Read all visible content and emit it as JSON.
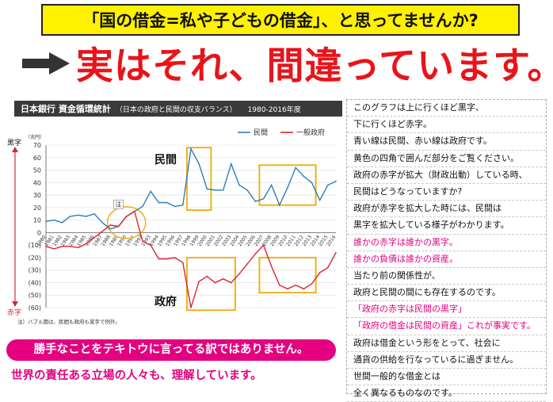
{
  "banner": {
    "text": "「国の借金=私や子どもの借金」、と思ってませんか?"
  },
  "headline": {
    "text": "実はそれ、間違っています。"
  },
  "chart_header": {
    "title": "日本銀行 資金循環統計",
    "subtitle": "（日本の政府と民間の収支バランス）",
    "range": "1980-2016年度"
  },
  "chart_data": {
    "type": "line",
    "unit_label": "（兆円）",
    "ylim": [
      -60,
      70
    ],
    "yticks": [
      70,
      60,
      50,
      40,
      30,
      20,
      10,
      0,
      -10,
      -20,
      -30,
      -40,
      -50,
      -60
    ],
    "ytick_labels": [
      "70",
      "60",
      "50",
      "40",
      "30",
      "20",
      "10",
      "0",
      "(10)",
      "(20)",
      "(30)",
      "(40)",
      "(50)",
      "(60)"
    ],
    "x": [
      "1980",
      "1981",
      "1982",
      "1983",
      "1984",
      "1985",
      "1986",
      "1987",
      "1988",
      "1989",
      "1990",
      "1991",
      "1992",
      "1993",
      "1994",
      "1995",
      "1996",
      "1997",
      "1998",
      "1999",
      "2000",
      "2001",
      "2002",
      "2003",
      "2004",
      "2005",
      "2006",
      "2007",
      "2008",
      "2009",
      "2010",
      "2011",
      "2012",
      "2013",
      "2014",
      "2015",
      "2016"
    ],
    "series": [
      {
        "name": "民間",
        "color": "#2e7dbf",
        "values": [
          9,
          10,
          8,
          13,
          14,
          13,
          15,
          8,
          3,
          5,
          13,
          17,
          21,
          33,
          24,
          24,
          21,
          22,
          67,
          55,
          35,
          34,
          34,
          55,
          38,
          34,
          25,
          27,
          38,
          22,
          36,
          52,
          45,
          40,
          26,
          38,
          41
        ]
      },
      {
        "name": "一般政府",
        "color": "#d7282e",
        "values": [
          -11,
          -13,
          -11,
          -11,
          -12,
          -9,
          -4,
          1,
          6,
          5,
          13,
          17,
          -7,
          -10,
          -21,
          -21,
          -20,
          -24,
          -60,
          -39,
          -35,
          -40,
          -37,
          -40,
          -33,
          -25,
          -17,
          -10,
          -27,
          -42,
          -45,
          -42,
          -45,
          -41,
          -32,
          -28,
          -16
        ]
      }
    ],
    "legend": [
      "民間",
      "一般政府"
    ],
    "annotations": {
      "minkan": "民間",
      "seifu": "政府",
      "bubble_marker": "注",
      "footnote": "注）バブル期は、民間も政府も黒字で例外。",
      "kuro": "黒字",
      "aka": "赤字"
    }
  },
  "notes": [
    {
      "text": "このグラフは上に行くほど黒字、",
      "color": "black"
    },
    {
      "text": "下に行くほど赤字。",
      "color": "black"
    },
    {
      "text": "青い線は民間、赤い線は政府です。",
      "color": "black"
    },
    {
      "text": "黄色の四角で囲んだ部分をご覧ください。",
      "color": "black"
    },
    {
      "text": "政府の赤字が拡大（財政出動）している時、",
      "color": "black"
    },
    {
      "text": "民間はどうなっていますか?",
      "color": "black"
    },
    {
      "text": "政府が赤字を拡大した時には、民間は",
      "color": "black"
    },
    {
      "text": "黒字を拡大している様子がわかります。",
      "color": "black"
    },
    {
      "text": "誰かの赤字は誰かの黒字。",
      "color": "pink"
    },
    {
      "text": "誰かの負債は誰かの資産。",
      "color": "pink"
    },
    {
      "text": "当たり前の関係性が、",
      "color": "black"
    },
    {
      "text": "政府と民間の間にも存在するのです。",
      "color": "black"
    },
    {
      "text": "「政府の赤字は民間の黒字」",
      "color": "pink"
    },
    {
      "text": "「政府の借金は民間の資産」これが事実です。",
      "color": "pink"
    },
    {
      "text": "政府は借金という形をとって、社会に",
      "color": "black"
    },
    {
      "text": "通貨の供給を行なっているに過ぎません。",
      "color": "black"
    },
    {
      "text": "世間一般的な借金とは",
      "color": "black"
    },
    {
      "text": "全く異なるものなのです。",
      "color": "black"
    }
  ],
  "footer": {
    "pill": "勝手なことをテキトウに言ってる訳ではありません。",
    "line2": "世界の責任ある立場の人々も、理解しています。"
  }
}
